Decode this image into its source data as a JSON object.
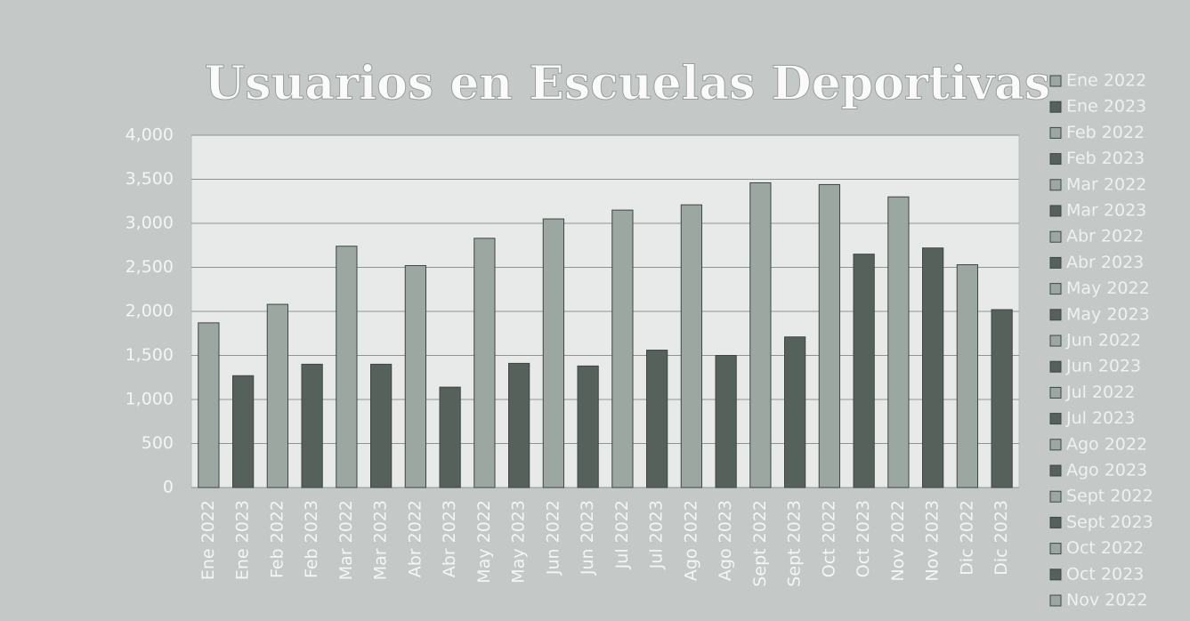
{
  "chart_data": {
    "type": "bar",
    "title": "Usuarios en Escuelas Deportivas",
    "categories": [
      "Ene 2022",
      "Ene 2023",
      "Feb 2022",
      "Feb 2023",
      "Mar 2022",
      "Mar 2023",
      "Abr 2022",
      "Abr 2023",
      "May 2022",
      "May 2023",
      "Jun 2022",
      "Jun 2023",
      "Jul 2022",
      "Jul 2023",
      "Ago 2022",
      "Ago 2023",
      "Sept 2022",
      "Sept 2023",
      "Oct 2022",
      "Oct  2023",
      "Nov 2022",
      "Nov 2023",
      "Dic 2022",
      "Dic  2023"
    ],
    "values": [
      1870,
      1270,
      2080,
      1400,
      2740,
      1400,
      2520,
      1140,
      2830,
      1410,
      3050,
      1380,
      3150,
      1560,
      3210,
      1500,
      3460,
      1710,
      3440,
      2650,
      3300,
      2720,
      2530,
      2020
    ],
    "colors": [
      "#9ca7a1",
      "#56615b"
    ],
    "ylim": [
      0,
      4000
    ],
    "yticks": [
      0,
      500,
      {
        "value": 1000,
        "label": "1,000"
      },
      {
        "value": 1500,
        "label": "1,500"
      },
      {
        "value": 2000,
        "label": "2,000"
      },
      {
        "value": 2500,
        "label": "2,500"
      },
      {
        "value": 3000,
        "label": "3,000"
      },
      {
        "value": 3500,
        "label": "3,500"
      },
      {
        "value": 4000,
        "label": "4,000"
      }
    ],
    "grid": true,
    "legend": "right"
  }
}
